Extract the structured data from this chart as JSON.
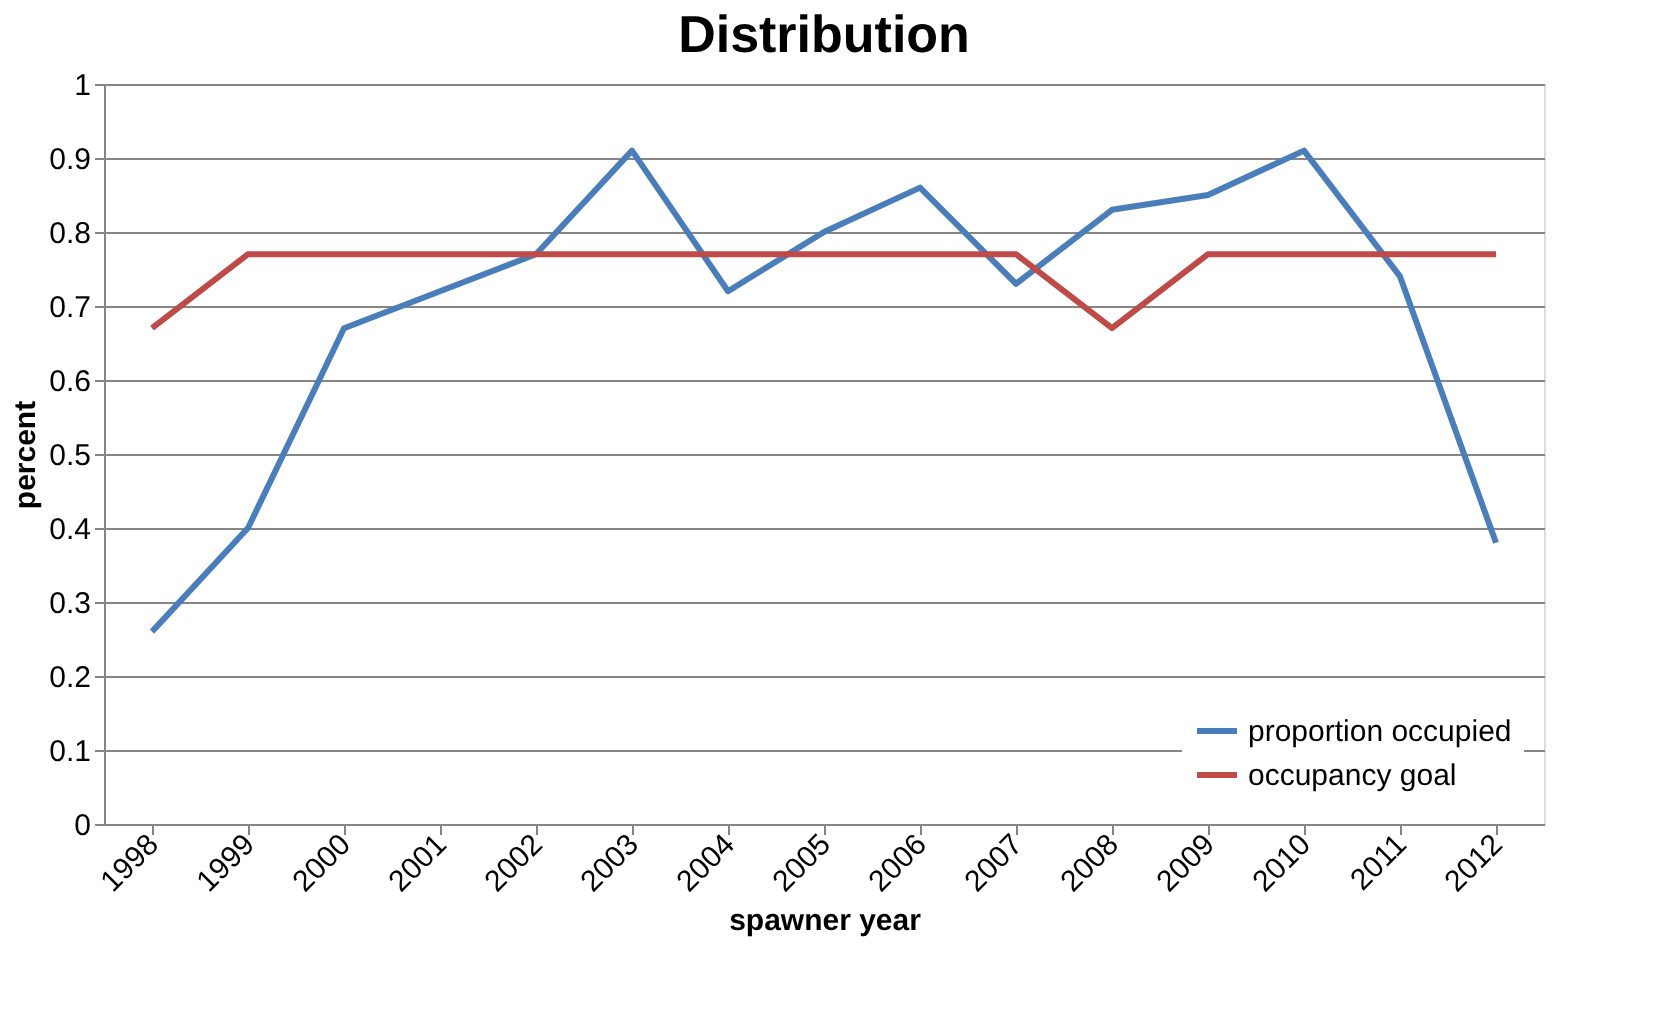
{
  "chart_data": {
    "type": "line",
    "title": "Distribution",
    "xlabel": "spawner year",
    "ylabel": "percent",
    "categories": [
      "1998",
      "1999",
      "2000",
      "2001",
      "2002",
      "2003",
      "2004",
      "2005",
      "2006",
      "2007",
      "2008",
      "2009",
      "2010",
      "2011",
      "2012"
    ],
    "series": [
      {
        "name": "proportion occupied",
        "color": "#4a7ebb",
        "values": [
          0.26,
          0.4,
          0.67,
          0.72,
          0.77,
          0.91,
          0.72,
          0.8,
          0.86,
          0.73,
          0.83,
          0.85,
          0.91,
          0.74,
          0.38
        ]
      },
      {
        "name": "occupancy goal",
        "color": "#be4b48",
        "values": [
          0.67,
          0.77,
          0.77,
          0.77,
          0.77,
          0.77,
          0.77,
          0.77,
          0.77,
          0.77,
          0.67,
          0.77,
          0.77,
          0.77,
          0.77
        ]
      }
    ],
    "ylim": [
      0,
      1
    ],
    "yticks": [
      0,
      0.1,
      0.2,
      0.3,
      0.4,
      0.5,
      0.6,
      0.7,
      0.8,
      0.9,
      1
    ],
    "grid": "y",
    "legend": "bottom right",
    "marker": "none",
    "line_style": "solid"
  }
}
